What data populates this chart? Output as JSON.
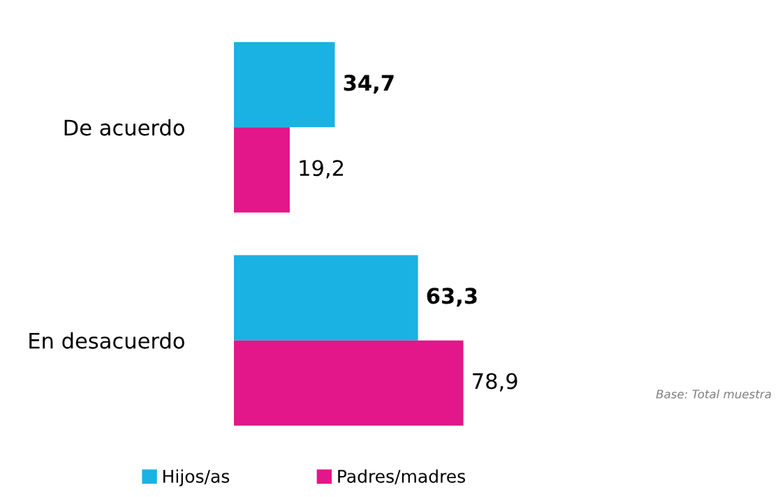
{
  "chart_data": {
    "type": "bar",
    "orientation": "horizontal",
    "categories": [
      "De acuerdo",
      "En desacuerdo"
    ],
    "series": [
      {
        "name": "Hijos/as",
        "color": "#1ab2e2",
        "values": [
          34.7,
          63.3
        ],
        "value_labels": [
          "34,7",
          "63,3"
        ]
      },
      {
        "name": "Padres/madres",
        "color": "#e3168a",
        "values": [
          19.2,
          78.9
        ],
        "value_labels": [
          "19,2",
          "78,9"
        ]
      }
    ],
    "tick_labels": "y",
    "legend": "bottom",
    "grid": false,
    "annotations": [
      "Base: Total muestra"
    ]
  }
}
